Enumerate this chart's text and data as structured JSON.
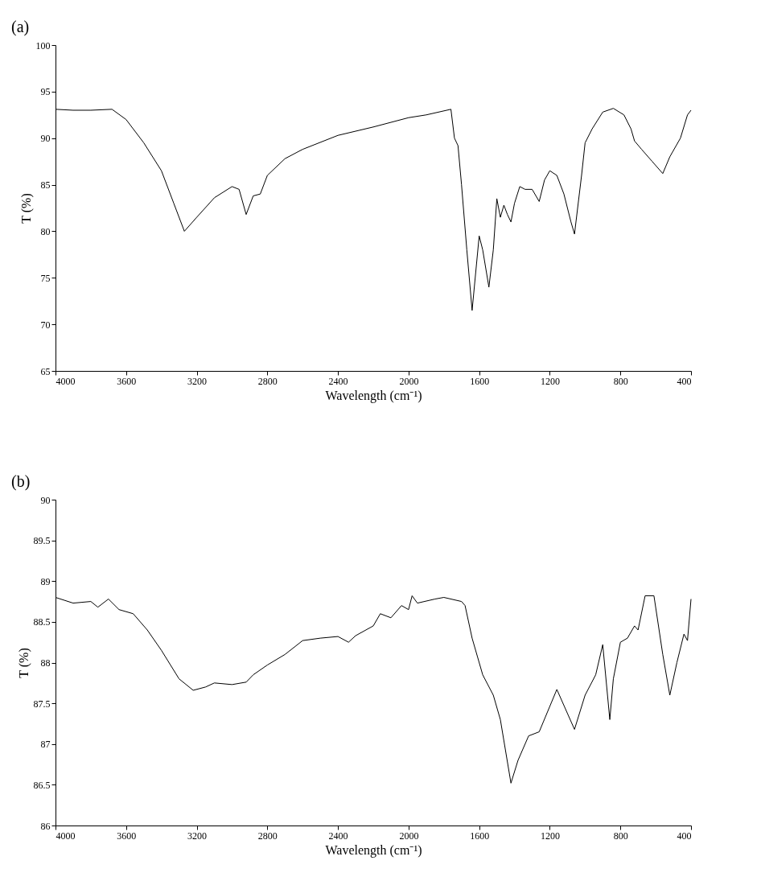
{
  "chart_data": [
    {
      "type": "line",
      "title": "(a)",
      "xlabel": "Wavelength (cm⁻¹)",
      "ylabel": "T (%)",
      "xlim": [
        4000,
        400
      ],
      "xticks": [
        4000,
        3600,
        3200,
        2800,
        2400,
        2000,
        1600,
        1200,
        800,
        400
      ],
      "ylim": [
        65,
        100
      ],
      "yticks": [
        65,
        70,
        75,
        80,
        85,
        90,
        95,
        100
      ],
      "marker": "none",
      "line_style": "solid",
      "series": [
        {
          "color": "#000000",
          "x": [
            4000,
            3900,
            3800,
            3680,
            3600,
            3500,
            3400,
            3330,
            3270,
            3200,
            3100,
            3000,
            2960,
            2920,
            2880,
            2840,
            2800,
            2700,
            2600,
            2400,
            2200,
            2000,
            1900,
            1760,
            1740,
            1720,
            1700,
            1670,
            1640,
            1600,
            1580,
            1545,
            1520,
            1500,
            1480,
            1460,
            1440,
            1420,
            1400,
            1370,
            1340,
            1300,
            1260,
            1230,
            1200,
            1160,
            1120,
            1080,
            1060,
            1020,
            1000,
            960,
            900,
            840,
            780,
            740,
            720,
            680,
            620,
            560,
            520,
            460,
            420,
            400
          ],
          "values": [
            93.1,
            93,
            93,
            93.1,
            92,
            89.5,
            86.5,
            83,
            80,
            81.5,
            83.6,
            84.8,
            84.5,
            81.8,
            83.8,
            84,
            86,
            87.8,
            88.8,
            90.3,
            91.2,
            92.2,
            92.5,
            93.1,
            90,
            89.2,
            85,
            78,
            71.5,
            79.5,
            78,
            74,
            78,
            83.5,
            81.5,
            82.8,
            81.8,
            81,
            83,
            84.8,
            84.5,
            84.5,
            83.2,
            85.5,
            86.5,
            86,
            84,
            81,
            79.7,
            86,
            89.5,
            91,
            92.8,
            93.2,
            92.5,
            91,
            89.7,
            88.8,
            87.5,
            86.2,
            88,
            90,
            92.5,
            93
          ]
        }
      ]
    },
    {
      "type": "line",
      "title": "(b)",
      "xlabel": "Wavelength (cm⁻¹)",
      "ylabel": "T (%)",
      "xlim": [
        4000,
        400
      ],
      "xticks": [
        4000,
        3600,
        3200,
        2800,
        2400,
        2000,
        1600,
        1200,
        800,
        400
      ],
      "ylim": [
        86,
        90
      ],
      "yticks": [
        86,
        86.5,
        87,
        87.5,
        88,
        88.5,
        89,
        89.5,
        90
      ],
      "marker": "none",
      "line_style": "solid",
      "series": [
        {
          "color": "#000000",
          "x": [
            4000,
            3900,
            3800,
            3760,
            3700,
            3640,
            3560,
            3480,
            3400,
            3300,
            3220,
            3150,
            3100,
            3000,
            2920,
            2880,
            2800,
            2700,
            2600,
            2500,
            2400,
            2340,
            2300,
            2200,
            2160,
            2100,
            2040,
            2000,
            1980,
            1950,
            1850,
            1800,
            1700,
            1680,
            1640,
            1580,
            1520,
            1480,
            1420,
            1380,
            1320,
            1260,
            1160,
            1060,
            1000,
            940,
            900,
            860,
            840,
            800,
            760,
            720,
            700,
            660,
            610,
            560,
            520,
            480,
            440,
            420,
            400
          ],
          "values": [
            88.8,
            88.73,
            88.75,
            88.68,
            88.78,
            88.65,
            88.6,
            88.4,
            88.15,
            87.8,
            87.66,
            87.7,
            87.75,
            87.73,
            87.76,
            87.85,
            87.97,
            88.1,
            88.27,
            88.3,
            88.32,
            88.25,
            88.33,
            88.45,
            88.6,
            88.55,
            88.7,
            88.65,
            88.82,
            88.73,
            88.78,
            88.8,
            88.75,
            88.7,
            88.3,
            87.85,
            87.6,
            87.3,
            86.52,
            86.8,
            87.1,
            87.15,
            87.67,
            87.18,
            87.6,
            87.85,
            88.22,
            87.3,
            87.8,
            88.25,
            88.3,
            88.45,
            88.4,
            88.82,
            88.82,
            88.1,
            87.6,
            88,
            88.35,
            88.27,
            88.78
          ]
        }
      ]
    }
  ]
}
